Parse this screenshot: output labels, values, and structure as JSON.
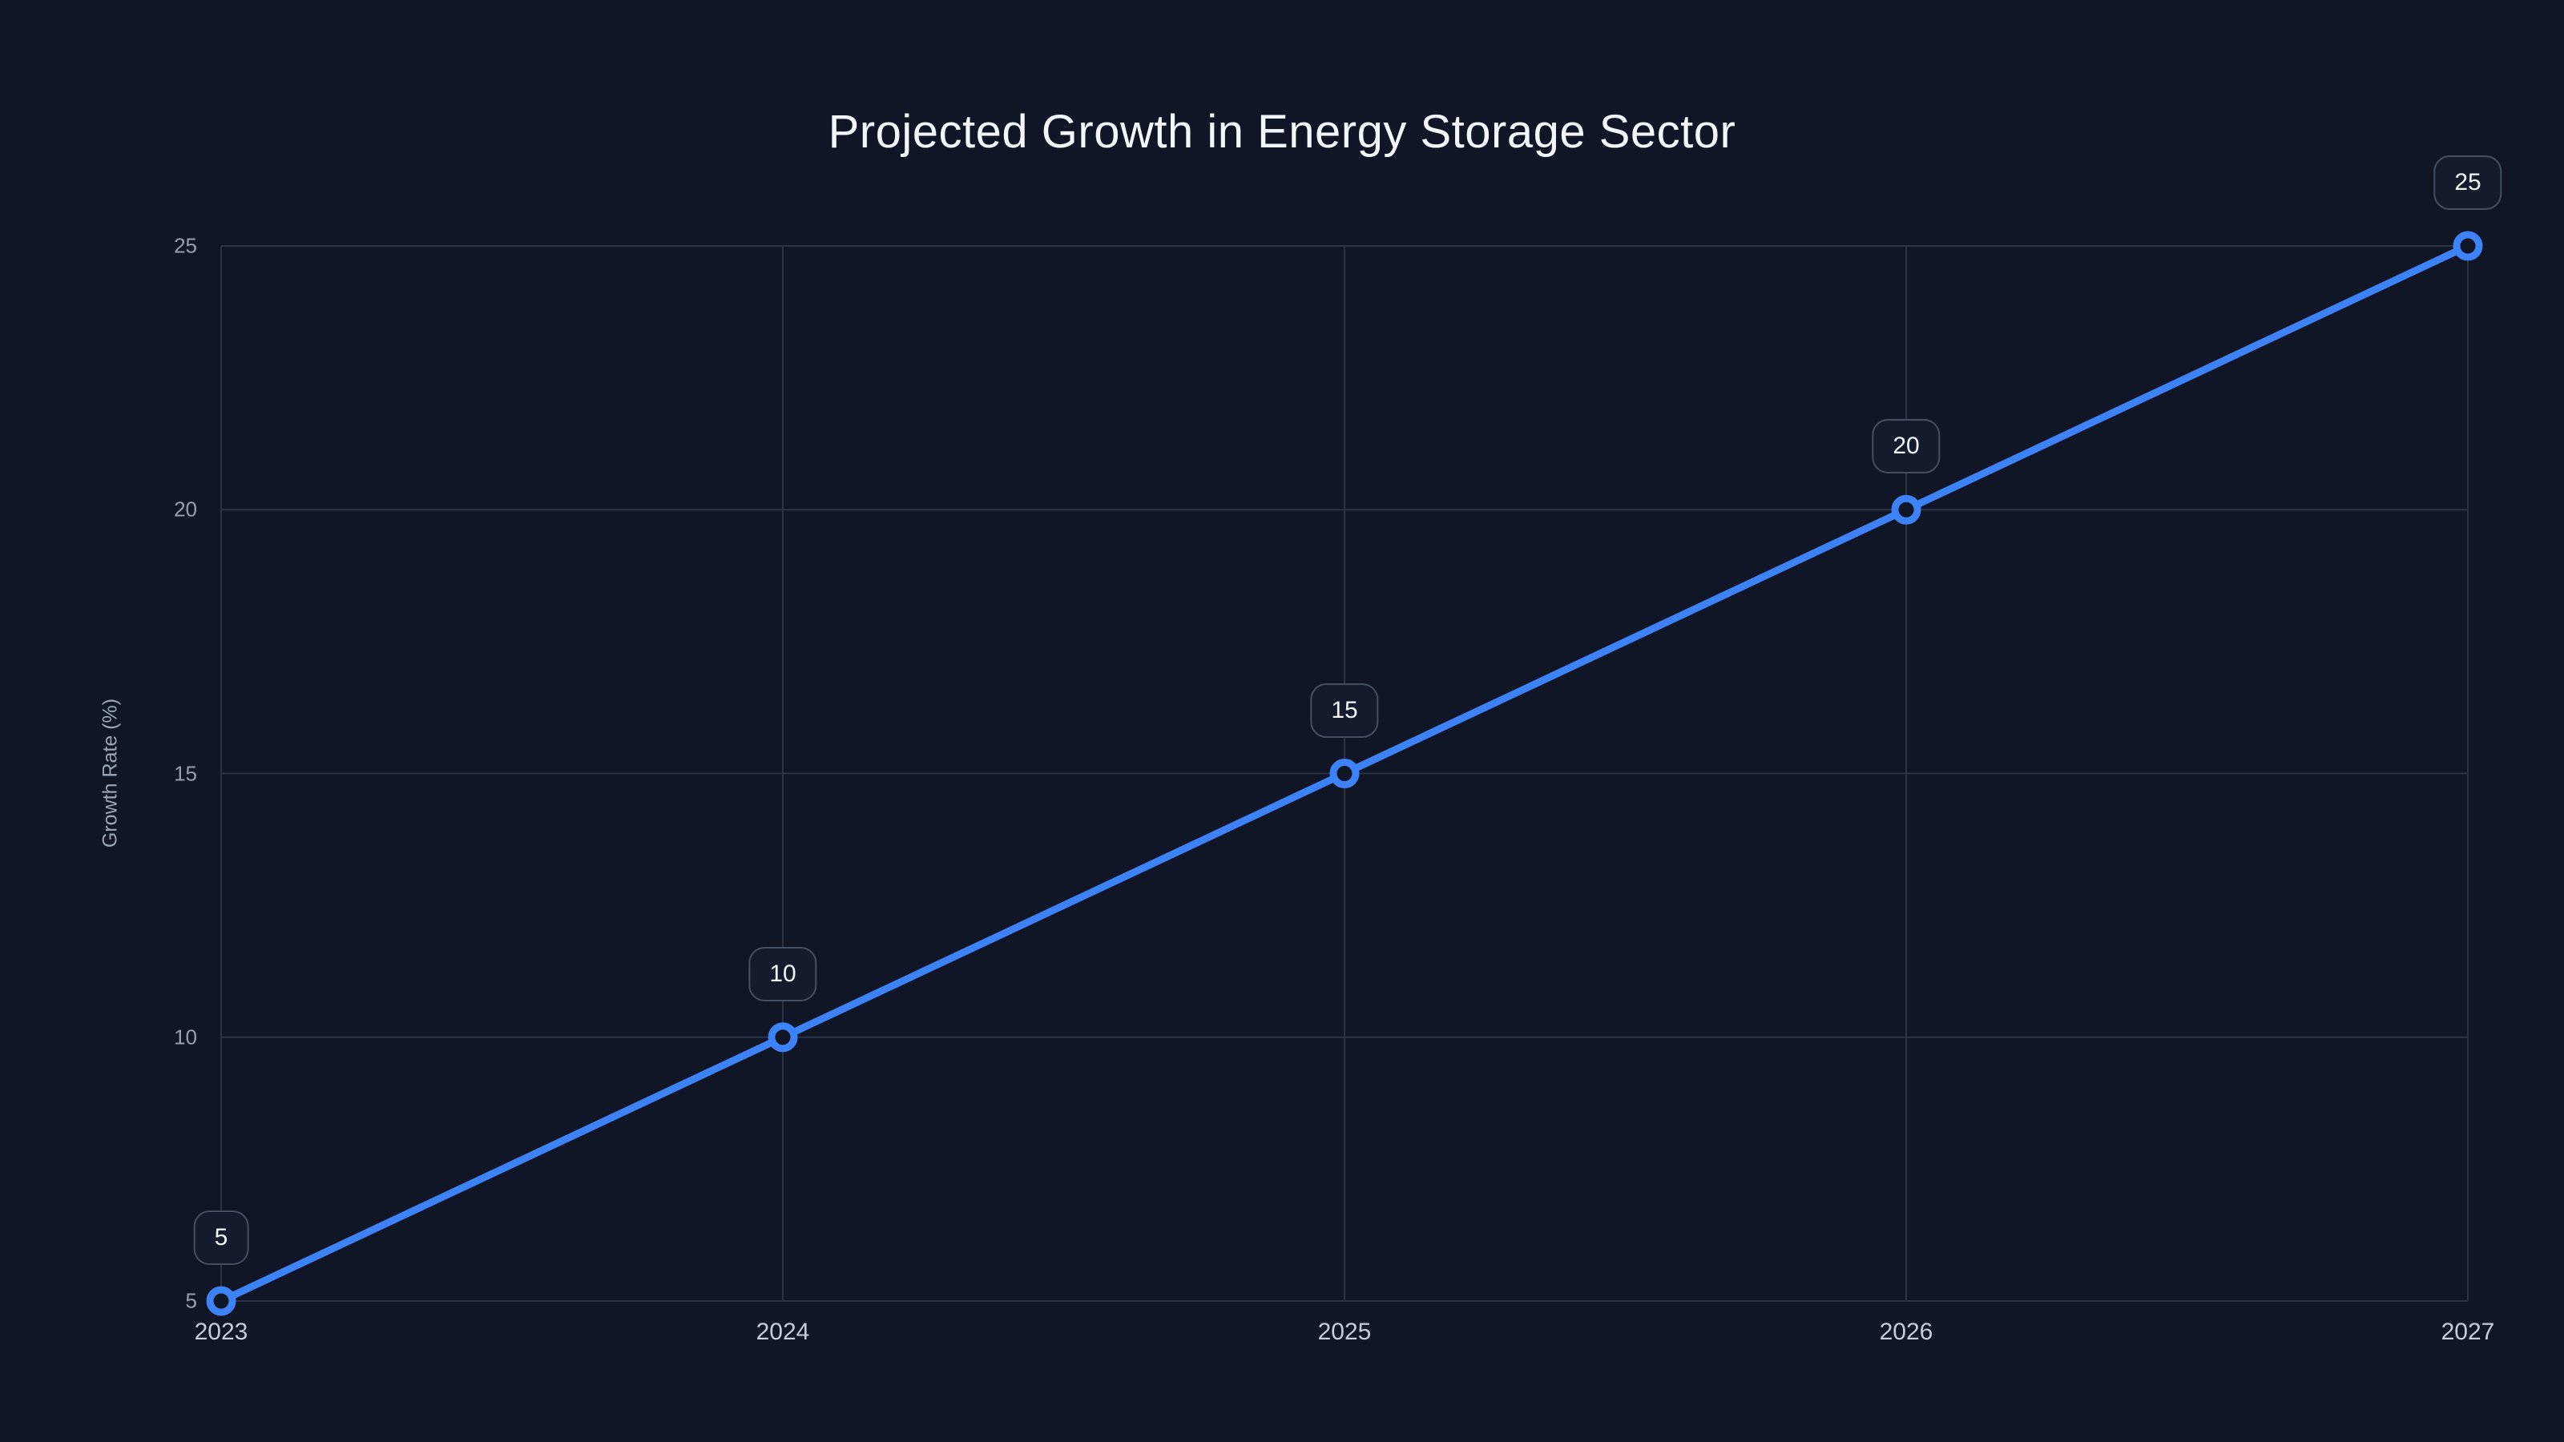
{
  "colors": {
    "background": "#101626",
    "accent_blue": "#3d82f6",
    "gridline": "#2a3346",
    "x_tick_label": "#c5cdda",
    "y_tick_label": "#93a0b4",
    "title_text": "#f3f6fa",
    "y_axis_title_text": "#9aa7bb",
    "badge_border": "#454f63",
    "badge_fill": "#141b2d",
    "badge_text": "#f2f5f9"
  },
  "chart_data": {
    "type": "line",
    "title": "Projected Growth in Energy Storage Sector",
    "xlabel": "",
    "ylabel": "Growth Rate (%)",
    "categories": [
      "2023",
      "2024",
      "2025",
      "2026",
      "2027"
    ],
    "series": [
      {
        "name": "Growth Rate (%)",
        "values": [
          5,
          10,
          15,
          20,
          25
        ]
      }
    ],
    "point_labels": [
      "5",
      "10",
      "15",
      "20",
      "25"
    ],
    "yticks": [
      "5",
      "10",
      "15",
      "20",
      "25"
    ],
    "ylim": [
      5,
      25
    ],
    "grid": true,
    "legend": "none",
    "line_style": "solid",
    "marker": "open-circle"
  }
}
